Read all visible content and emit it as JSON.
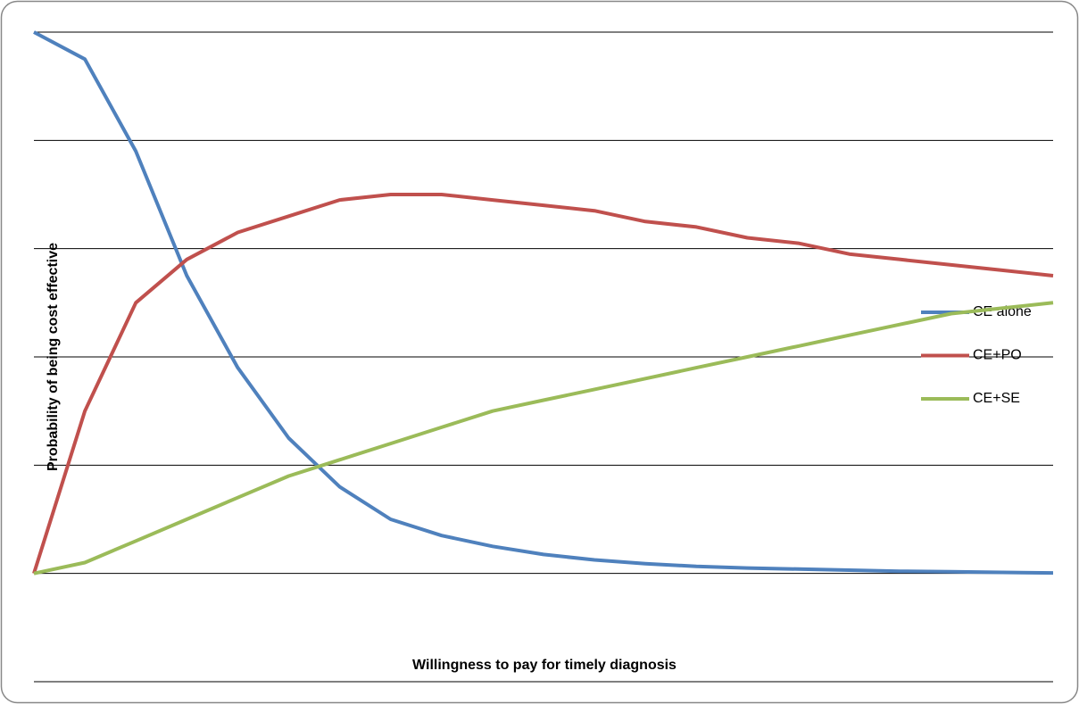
{
  "chart_data": {
    "type": "line",
    "x_label": "Willingness to pay for timely diagnosis",
    "y_label": "Probability of being cost effective",
    "x": [
      0,
      5000,
      10000,
      15000,
      20000,
      25000,
      30000,
      35000,
      40000,
      45000,
      50000,
      55000,
      60000,
      65000,
      70000,
      75000,
      80000,
      85000,
      90000,
      95000,
      100000
    ],
    "xlim": [
      0,
      100000
    ],
    "ylim": [
      -0.2,
      1
    ],
    "yticks": [
      -0.2,
      0,
      0.2,
      0.4,
      0.6,
      0.8,
      1
    ],
    "grid": true,
    "series": [
      {
        "name": "CE alone",
        "color": "#4f81bd",
        "values": [
          1.0,
          0.95,
          0.78,
          0.55,
          0.38,
          0.25,
          0.16,
          0.1,
          0.07,
          0.05,
          0.035,
          0.025,
          0.018,
          0.013,
          0.01,
          0.008,
          0.006,
          0.004,
          0.003,
          0.002,
          0.001
        ]
      },
      {
        "name": "CE+PO",
        "color": "#c0504d",
        "values": [
          0,
          0.3,
          0.5,
          0.58,
          0.63,
          0.66,
          0.69,
          0.7,
          0.7,
          0.69,
          0.68,
          0.67,
          0.65,
          0.64,
          0.62,
          0.61,
          0.59,
          0.58,
          0.57,
          0.56,
          0.55
        ]
      },
      {
        "name": "CE+SE",
        "color": "#9bbb59",
        "values": [
          0,
          0.02,
          0.06,
          0.1,
          0.14,
          0.18,
          0.21,
          0.24,
          0.27,
          0.3,
          0.32,
          0.34,
          0.36,
          0.38,
          0.4,
          0.42,
          0.44,
          0.46,
          0.48,
          0.49,
          0.5
        ]
      }
    ]
  }
}
